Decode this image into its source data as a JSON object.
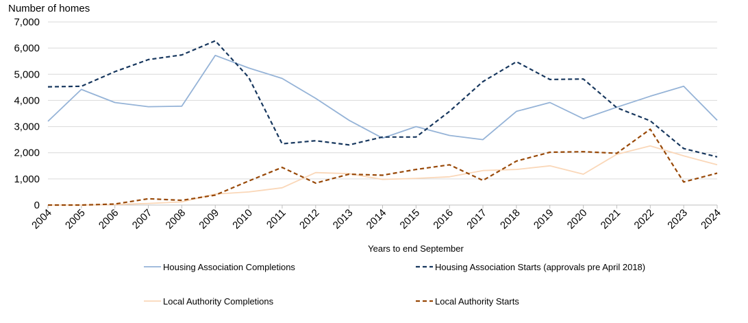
{
  "chart_data": {
    "type": "line",
    "title": "",
    "ylabel": "Number of homes",
    "xlabel": "Years to end September",
    "ylim": [
      0,
      7000
    ],
    "yticks": [
      0,
      1000,
      2000,
      3000,
      4000,
      5000,
      6000,
      7000
    ],
    "ytick_labels": [
      "0",
      "1,000",
      "2,000",
      "3,000",
      "4,000",
      "5,000",
      "6,000",
      "7,000"
    ],
    "categories": [
      "2004",
      "2005",
      "2006",
      "2007",
      "2008",
      "2009",
      "2010",
      "2011",
      "2012",
      "2013",
      "2014",
      "2015",
      "2016",
      "2017",
      "2018",
      "2019",
      "2020",
      "2021",
      "2022",
      "2023",
      "2024"
    ],
    "grid": true,
    "legend_position": "bottom",
    "series": [
      {
        "name": "Housing Association Completions",
        "color": "#95B3D7",
        "dash": "solid",
        "values": [
          3200,
          4420,
          3920,
          3760,
          3780,
          5720,
          5240,
          4840,
          4080,
          3240,
          2560,
          3000,
          2660,
          2500,
          3580,
          3920,
          3300,
          3740,
          4160,
          4540,
          3240
        ]
      },
      {
        "name": "Housing Association Starts (approvals pre April 2018)",
        "color": "#17375E",
        "dash": "dashed",
        "values": [
          4520,
          4540,
          5100,
          5560,
          5740,
          6280,
          4880,
          2340,
          2460,
          2300,
          2600,
          2600,
          3580,
          4720,
          5480,
          4800,
          4820,
          3720,
          3220,
          2160,
          1840
        ]
      },
      {
        "name": "Local Authority Completions",
        "color": "#FAD7B8",
        "dash": "solid",
        "values": [
          0,
          0,
          20,
          60,
          120,
          420,
          500,
          660,
          1240,
          1200,
          980,
          1020,
          1080,
          1320,
          1360,
          1500,
          1180,
          1940,
          2260,
          1880,
          1540
        ]
      },
      {
        "name": "Local Authority Starts",
        "color": "#984807",
        "dash": "dashed",
        "values": [
          0,
          0,
          40,
          240,
          180,
          380,
          920,
          1440,
          840,
          1180,
          1140,
          1360,
          1540,
          940,
          1680,
          2020,
          2040,
          1980,
          2900,
          880,
          1220
        ]
      }
    ]
  }
}
